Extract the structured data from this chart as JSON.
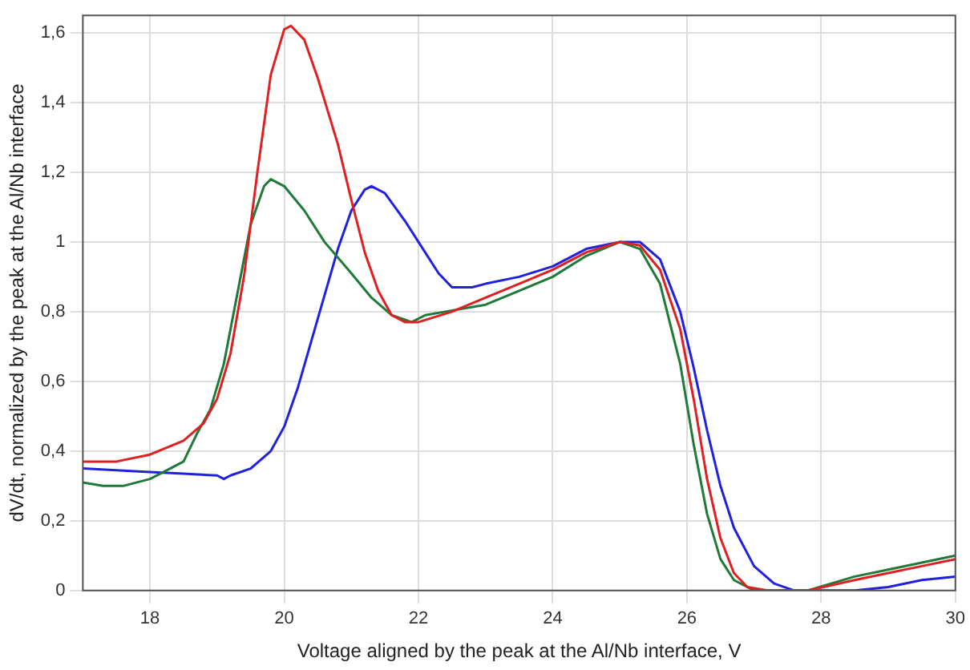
{
  "chart_data": {
    "type": "line",
    "xlabel": "Voltage aligned by the peak at the Al/Nb interface, V",
    "ylabel": "dV/dt, normalized by the peak at the Al/Nb interface",
    "xlim": [
      17,
      30
    ],
    "xticks": [
      18,
      20,
      22,
      24,
      26,
      28,
      30
    ],
    "ylim": [
      0,
      1.65
    ],
    "yticks": [
      0,
      {
        "value": 0.2,
        "label": "0,2"
      },
      {
        "value": 0.4,
        "label": "0,4"
      },
      {
        "value": 0.6,
        "label": "0,6"
      },
      {
        "value": 0.8,
        "label": "0,8"
      },
      1,
      {
        "value": 1.2,
        "label": "1,2"
      },
      {
        "value": 1.4,
        "label": "1,4"
      },
      {
        "value": 1.6,
        "label": "1,6"
      }
    ],
    "grid": true,
    "legend": false,
    "marker": "none",
    "line_style": "solid",
    "series": [
      {
        "color": "#e02020",
        "x": [
          17,
          17.5,
          18,
          18.5,
          18.8,
          19,
          19.2,
          19.4,
          19.6,
          19.8,
          20,
          20.1,
          20.3,
          20.5,
          20.8,
          21,
          21.2,
          21.4,
          21.6,
          21.8,
          22,
          22.5,
          23,
          23.5,
          24,
          24.5,
          25,
          25.3,
          25.6,
          25.9,
          26.1,
          26.3,
          26.5,
          26.7,
          26.9,
          27.2,
          27.8,
          28.5,
          29,
          29.5,
          30
        ],
        "values": [
          0.37,
          0.37,
          0.39,
          0.43,
          0.48,
          0.55,
          0.68,
          0.9,
          1.2,
          1.48,
          1.61,
          1.62,
          1.58,
          1.47,
          1.28,
          1.12,
          0.97,
          0.86,
          0.79,
          0.77,
          0.77,
          0.8,
          0.84,
          0.88,
          0.92,
          0.97,
          1,
          0.99,
          0.92,
          0.75,
          0.55,
          0.32,
          0.15,
          0.05,
          0.01,
          0,
          0,
          0.03,
          0.05,
          0.07,
          0.09
        ]
      },
      {
        "color": "#1f7a3a",
        "x": [
          17,
          17.3,
          17.6,
          18,
          18.3,
          18.5,
          18.7,
          18.9,
          19.1,
          19.3,
          19.5,
          19.7,
          19.8,
          20,
          20.3,
          20.6,
          21,
          21.3,
          21.6,
          21.9,
          22.1,
          22.4,
          23,
          23.5,
          24,
          24.5,
          25,
          25.3,
          25.6,
          25.9,
          26.1,
          26.3,
          26.5,
          26.7,
          27,
          27.8,
          28.5,
          29,
          29.5,
          30
        ],
        "values": [
          0.31,
          0.3,
          0.3,
          0.32,
          0.35,
          0.37,
          0.45,
          0.52,
          0.65,
          0.85,
          1.05,
          1.16,
          1.18,
          1.16,
          1.09,
          1,
          0.91,
          0.84,
          0.79,
          0.77,
          0.79,
          0.8,
          0.82,
          0.86,
          0.9,
          0.96,
          1,
          0.98,
          0.88,
          0.65,
          0.42,
          0.22,
          0.09,
          0.03,
          0,
          0,
          0.04,
          0.06,
          0.08,
          0.1
        ]
      },
      {
        "color": "#2020e0",
        "x": [
          17,
          17.5,
          18,
          18.5,
          19,
          19.1,
          19.2,
          19.5,
          19.8,
          20,
          20.2,
          20.5,
          20.8,
          21,
          21.2,
          21.3,
          21.5,
          21.8,
          22,
          22.3,
          22.5,
          22.8,
          23,
          23.5,
          24,
          24.5,
          25,
          25.3,
          25.6,
          25.9,
          26.1,
          26.3,
          26.5,
          26.7,
          27,
          27.3,
          27.6,
          28,
          28.5,
          29,
          29.5,
          30
        ],
        "values": [
          0.35,
          0.345,
          0.34,
          0.335,
          0.33,
          0.32,
          0.33,
          0.35,
          0.4,
          0.47,
          0.58,
          0.78,
          0.98,
          1.09,
          1.15,
          1.16,
          1.14,
          1.06,
          1,
          0.91,
          0.87,
          0.87,
          0.88,
          0.9,
          0.93,
          0.98,
          1,
          1,
          0.95,
          0.8,
          0.64,
          0.46,
          0.3,
          0.18,
          0.07,
          0.02,
          0,
          0,
          0,
          0.01,
          0.03,
          0.04
        ]
      }
    ]
  }
}
